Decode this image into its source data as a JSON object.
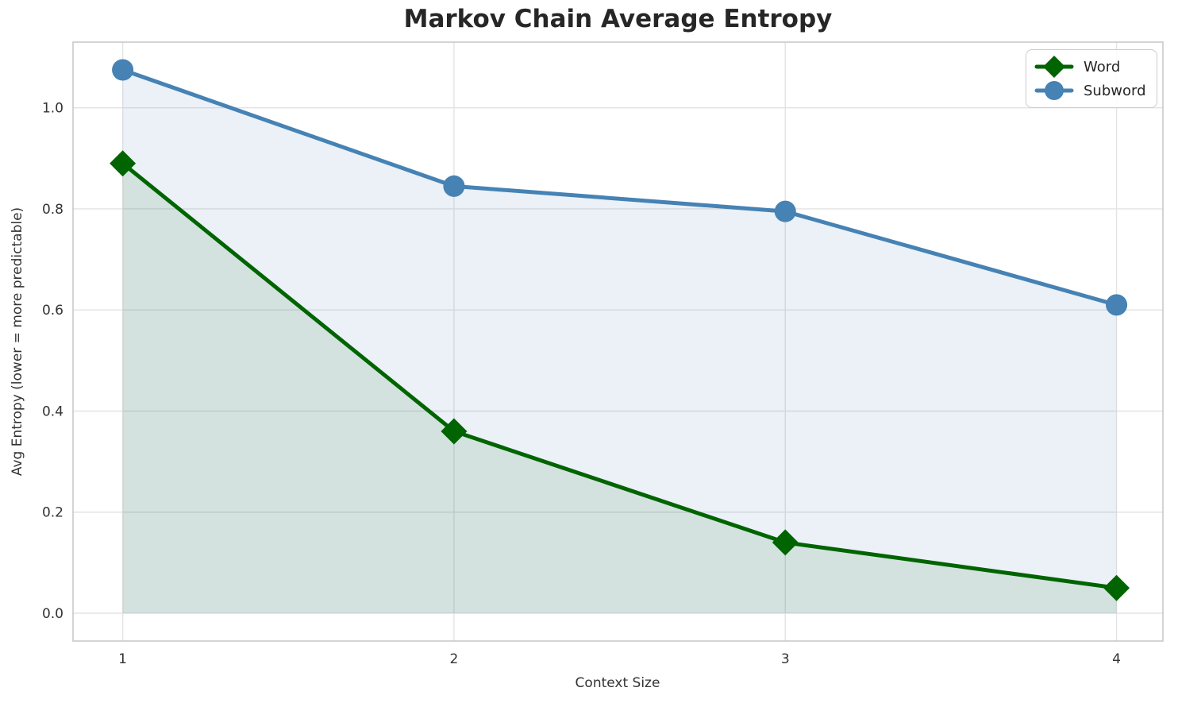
{
  "chart_data": {
    "type": "line",
    "title": "Markov Chain Average Entropy",
    "xlabel": "Context Size",
    "ylabel": "Avg Entropy (lower = more predictable)",
    "x": [
      1,
      2,
      3,
      4
    ],
    "yticks": [
      0.0,
      0.2,
      0.4,
      0.6,
      0.8,
      1.0
    ],
    "xlim": [
      0.85,
      4.14
    ],
    "ylim": [
      -0.055,
      1.13
    ],
    "grid": true,
    "legend_position": "upper right",
    "series": [
      {
        "name": "Word",
        "values": [
          0.89,
          0.36,
          0.14,
          0.05
        ],
        "color": "#006400",
        "fill_color": "rgba(0,100,0,0.10)",
        "marker": "diamond"
      },
      {
        "name": "Subword",
        "values": [
          1.075,
          0.845,
          0.795,
          0.61
        ],
        "color": "#4682b4",
        "fill_color": "rgba(70,130,180,0.11)",
        "marker": "circle"
      }
    ],
    "style": {
      "grid_color": "#e3e3e3",
      "spine_color": "#c9c9c9",
      "tick_label_color": "#333333",
      "line_width": 5
    }
  }
}
